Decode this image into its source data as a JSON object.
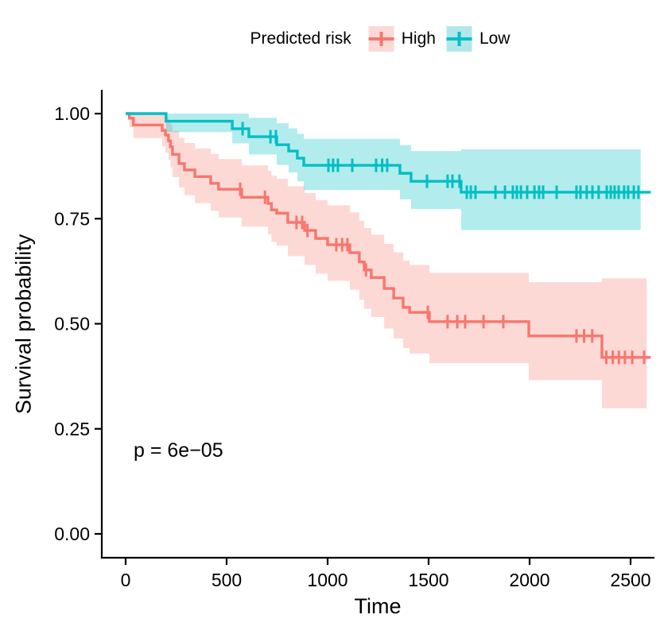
{
  "chart_data": {
    "type": "line",
    "subtype": "kaplan-meier-step",
    "title": "",
    "xlabel": "Time",
    "ylabel": "Survival probability",
    "p_label": "p = 6e−05",
    "xlim": [
      0,
      2600
    ],
    "ylim": [
      0.0,
      1.0
    ],
    "grid": "off",
    "x_ticks": [
      0,
      500,
      1000,
      1500,
      2000,
      2500
    ],
    "x_tick_labels": [
      "0",
      "500",
      "1000",
      "1500",
      "2000",
      "2500"
    ],
    "y_ticks": [
      0.0,
      0.25,
      0.5,
      0.75,
      1.0
    ],
    "y_tick_labels": [
      "0.00",
      "0.25",
      "0.50",
      "0.75",
      "1.00"
    ],
    "legend": {
      "title": "Predicted risk",
      "position": "top",
      "entries": [
        {
          "label": "High",
          "color": "#F8766D",
          "key_bg": "#FBD9D6"
        },
        {
          "label": "Low",
          "color": "#00BFC4",
          "key_bg": "#B2E7E9"
        }
      ]
    },
    "annotation": {
      "text": "p = 6e−05",
      "x": 60,
      "y": 0.2
    },
    "series": [
      {
        "name": "High",
        "color": "#F8766D",
        "band_rgba": "rgba(248,118,109,0.28)",
        "line_end": 2600,
        "band_end": 2580,
        "steps": [
          [
            0,
            1.0,
            1.0,
            1.0
          ],
          [
            18,
            0.989,
            0.968,
            1.0
          ],
          [
            38,
            0.973,
            0.942,
            1.0
          ],
          [
            181,
            0.96,
            0.922,
            0.998
          ],
          [
            197,
            0.949,
            0.907,
            0.992
          ],
          [
            212,
            0.935,
            0.89,
            0.983
          ],
          [
            222,
            0.921,
            0.872,
            0.973
          ],
          [
            232,
            0.903,
            0.849,
            0.959
          ],
          [
            264,
            0.881,
            0.824,
            0.942
          ],
          [
            291,
            0.866,
            0.806,
            0.93
          ],
          [
            343,
            0.85,
            0.787,
            0.917
          ],
          [
            421,
            0.834,
            0.769,
            0.904
          ],
          [
            460,
            0.82,
            0.753,
            0.892
          ],
          [
            575,
            0.801,
            0.731,
            0.877
          ],
          [
            705,
            0.786,
            0.713,
            0.864
          ],
          [
            722,
            0.771,
            0.695,
            0.852
          ],
          [
            748,
            0.763,
            0.686,
            0.845
          ],
          [
            803,
            0.741,
            0.661,
            0.827
          ],
          [
            886,
            0.722,
            0.64,
            0.811
          ],
          [
            941,
            0.703,
            0.619,
            0.794
          ],
          [
            1000,
            0.688,
            0.602,
            0.782
          ],
          [
            1110,
            0.669,
            0.581,
            0.765
          ],
          [
            1157,
            0.647,
            0.557,
            0.745
          ],
          [
            1181,
            0.628,
            0.536,
            0.728
          ],
          [
            1216,
            0.61,
            0.516,
            0.712
          ],
          [
            1280,
            0.584,
            0.489,
            0.69
          ],
          [
            1327,
            0.561,
            0.465,
            0.67
          ],
          [
            1374,
            0.539,
            0.442,
            0.65
          ],
          [
            1406,
            0.527,
            0.429,
            0.64
          ],
          [
            1504,
            0.505,
            0.406,
            0.621
          ],
          [
            1996,
            0.471,
            0.366,
            0.599
          ],
          [
            2358,
            0.42,
            0.299,
            0.608
          ]
        ],
        "censor_times": [
          567,
          690,
          846,
          874,
          900,
          1043,
          1072,
          1098,
          1190,
          1496,
          1594,
          1642,
          1681,
          1772,
          1870,
          2232,
          2270,
          2310,
          2380,
          2412,
          2442,
          2472,
          2508,
          2567
        ]
      },
      {
        "name": "Low",
        "color": "#00BFC4",
        "band_rgba": "rgba(0,191,196,0.30)",
        "line_end": 2600,
        "band_end": 2550,
        "steps": [
          [
            0,
            1.0,
            1.0,
            1.0
          ],
          [
            200,
            0.982,
            0.956,
            1.0
          ],
          [
            528,
            0.964,
            0.929,
            1.0
          ],
          [
            610,
            0.945,
            0.903,
            0.99
          ],
          [
            748,
            0.926,
            0.878,
            0.977
          ],
          [
            807,
            0.911,
            0.86,
            0.965
          ],
          [
            850,
            0.894,
            0.839,
            0.952
          ],
          [
            882,
            0.877,
            0.818,
            0.94
          ],
          [
            1358,
            0.858,
            0.796,
            0.925
          ],
          [
            1413,
            0.839,
            0.773,
            0.911
          ],
          [
            1661,
            0.813,
            0.723,
            0.915
          ]
        ],
        "censor_times": [
          579,
          717,
          744,
          1004,
          1027,
          1051,
          1122,
          1240,
          1270,
          1295,
          1492,
          1594,
          1618,
          1653,
          1689,
          1709,
          1732,
          1831,
          1878,
          1917,
          1937,
          1957,
          1988,
          2024,
          2047,
          2067,
          2134,
          2232,
          2252,
          2283,
          2311,
          2342,
          2382,
          2402,
          2421,
          2441,
          2468,
          2488,
          2516,
          2539
        ]
      }
    ],
    "layout_hints": {
      "legend_position": "top-center",
      "axes": "left-bottom-only"
    }
  }
}
